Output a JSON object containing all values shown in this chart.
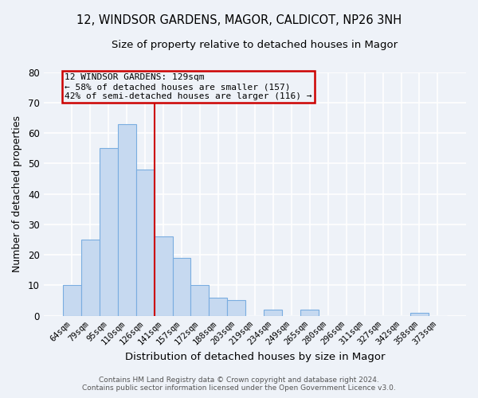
{
  "title": "12, WINDSOR GARDENS, MAGOR, CALDICOT, NP26 3NH",
  "subtitle": "Size of property relative to detached houses in Magor",
  "xlabel": "Distribution of detached houses by size in Magor",
  "ylabel": "Number of detached properties",
  "bar_labels": [
    "64sqm",
    "79sqm",
    "95sqm",
    "110sqm",
    "126sqm",
    "141sqm",
    "157sqm",
    "172sqm",
    "188sqm",
    "203sqm",
    "219sqm",
    "234sqm",
    "249sqm",
    "265sqm",
    "280sqm",
    "296sqm",
    "311sqm",
    "327sqm",
    "342sqm",
    "358sqm",
    "373sqm"
  ],
  "bar_values": [
    10,
    25,
    55,
    63,
    48,
    26,
    19,
    10,
    6,
    5,
    0,
    2,
    0,
    2,
    0,
    0,
    0,
    0,
    0,
    1,
    0
  ],
  "bar_color": "#c6d9f0",
  "bar_edgecolor": "#7aade0",
  "ylim": [
    0,
    80
  ],
  "yticks": [
    0,
    10,
    20,
    30,
    40,
    50,
    60,
    70,
    80
  ],
  "vline_x": 4.5,
  "vline_color": "#cc0000",
  "annotation_title": "12 WINDSOR GARDENS: 129sqm",
  "annotation_line1": "← 58% of detached houses are smaller (157)",
  "annotation_line2": "42% of semi-detached houses are larger (116) →",
  "annotation_box_color": "#cc0000",
  "footer1": "Contains HM Land Registry data © Crown copyright and database right 2024.",
  "footer2": "Contains public sector information licensed under the Open Government Licence v3.0.",
  "background_color": "#eef2f8",
  "grid_color": "#ffffff",
  "title_fontsize": 10.5,
  "subtitle_fontsize": 9.5
}
